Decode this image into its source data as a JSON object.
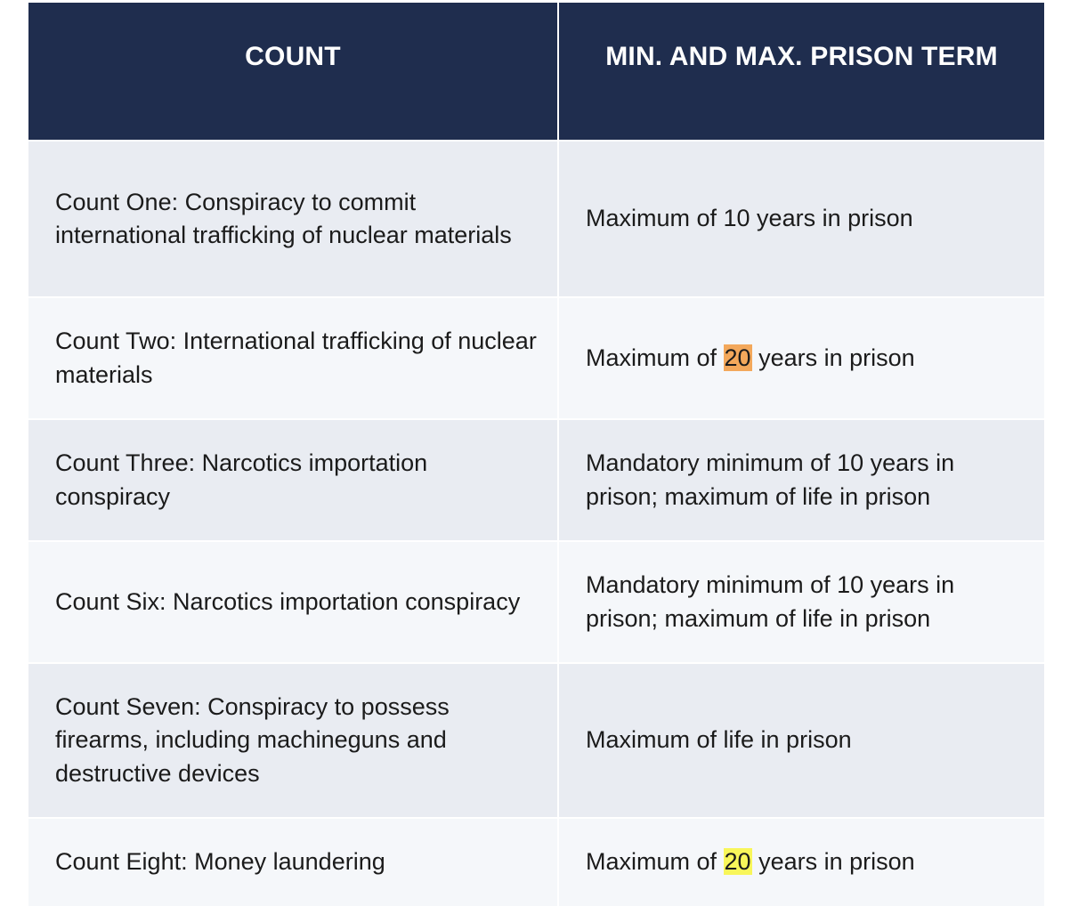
{
  "header": {
    "count": "COUNT",
    "term": "MIN. AND MAX. PRISON TERM"
  },
  "rows": [
    {
      "count": "Count One: Conspiracy to commit international trafficking of nuclear materials",
      "term_before": "Maximum of 10 years in prison",
      "term_highlight": "",
      "term_after": ""
    },
    {
      "count": "Count Two: International trafficking of nuclear materials",
      "term_before": "Maximum of ",
      "term_highlight": "20",
      "term_after": " years in prison"
    },
    {
      "count": "Count Three: Narcotics importation conspiracy",
      "term_before": "Mandatory minimum of 10 years in prison; maximum of life in prison",
      "term_highlight": "",
      "term_after": ""
    },
    {
      "count": "Count Six: Narcotics importation conspiracy",
      "term_before": "Mandatory minimum of 10 years in prison; maximum of life in prison",
      "term_highlight": "",
      "term_after": ""
    },
    {
      "count": "Count Seven: Conspiracy to possess firearms, including machineguns and destructive devices",
      "term_before": "Maximum of life in prison",
      "term_highlight": "",
      "term_after": ""
    },
    {
      "count": "Count Eight: Money laundering",
      "term_before": "Maximum of ",
      "term_highlight": "20",
      "term_after": " years in prison"
    }
  ],
  "colors": {
    "header_bg": "#1f2d4e",
    "row_odd_bg": "#e9ecf2",
    "row_even_bg": "#f5f7fa",
    "highlight_orange": "#f3a85b",
    "highlight_yellow": "#f8f65a"
  }
}
